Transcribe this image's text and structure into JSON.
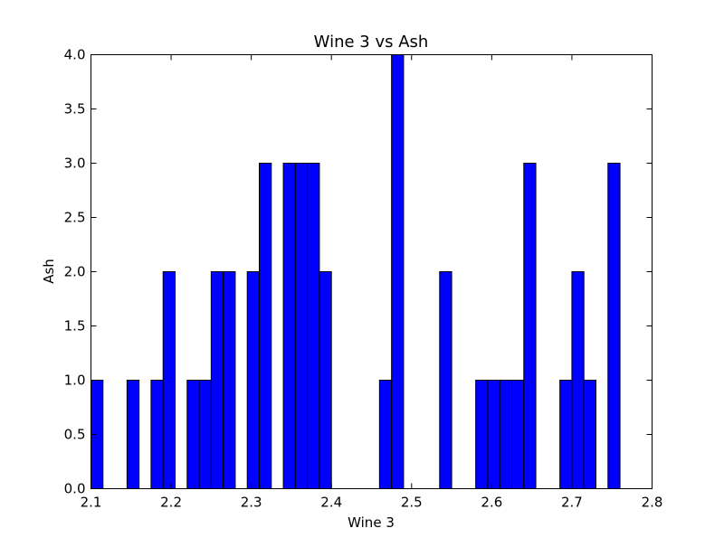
{
  "chart_data": {
    "type": "bar",
    "title": "Wine 3 vs Ash",
    "xlabel": "Wine 3",
    "ylabel": "Ash",
    "xlim": [
      2.1,
      2.8
    ],
    "ylim": [
      0.0,
      4.0
    ],
    "grid": false,
    "bar_color": "#0000ff",
    "edge_color": "#000000",
    "bin_width": 0.015,
    "x_ticks": [
      "2.1",
      "2.2",
      "2.3",
      "2.4",
      "2.5",
      "2.6",
      "2.7",
      "2.8"
    ],
    "y_ticks": [
      "0.0",
      "0.5",
      "1.0",
      "1.5",
      "2.0",
      "2.5",
      "3.0",
      "3.5",
      "4.0"
    ],
    "bins": [
      {
        "x": 2.1,
        "value": 1
      },
      {
        "x": 2.145,
        "value": 1
      },
      {
        "x": 2.175,
        "value": 1
      },
      {
        "x": 2.19,
        "value": 2
      },
      {
        "x": 2.22,
        "value": 1
      },
      {
        "x": 2.235,
        "value": 1
      },
      {
        "x": 2.25,
        "value": 2
      },
      {
        "x": 2.265,
        "value": 2
      },
      {
        "x": 2.295,
        "value": 2
      },
      {
        "x": 2.31,
        "value": 3
      },
      {
        "x": 2.34,
        "value": 3
      },
      {
        "x": 2.355,
        "value": 3
      },
      {
        "x": 2.37,
        "value": 3
      },
      {
        "x": 2.385,
        "value": 2
      },
      {
        "x": 2.46,
        "value": 1
      },
      {
        "x": 2.475,
        "value": 4
      },
      {
        "x": 2.535,
        "value": 2
      },
      {
        "x": 2.58,
        "value": 1
      },
      {
        "x": 2.595,
        "value": 1
      },
      {
        "x": 2.61,
        "value": 1
      },
      {
        "x": 2.625,
        "value": 1
      },
      {
        "x": 2.64,
        "value": 3
      },
      {
        "x": 2.685,
        "value": 1
      },
      {
        "x": 2.7,
        "value": 2
      },
      {
        "x": 2.715,
        "value": 1
      },
      {
        "x": 2.745,
        "value": 3
      }
    ]
  }
}
